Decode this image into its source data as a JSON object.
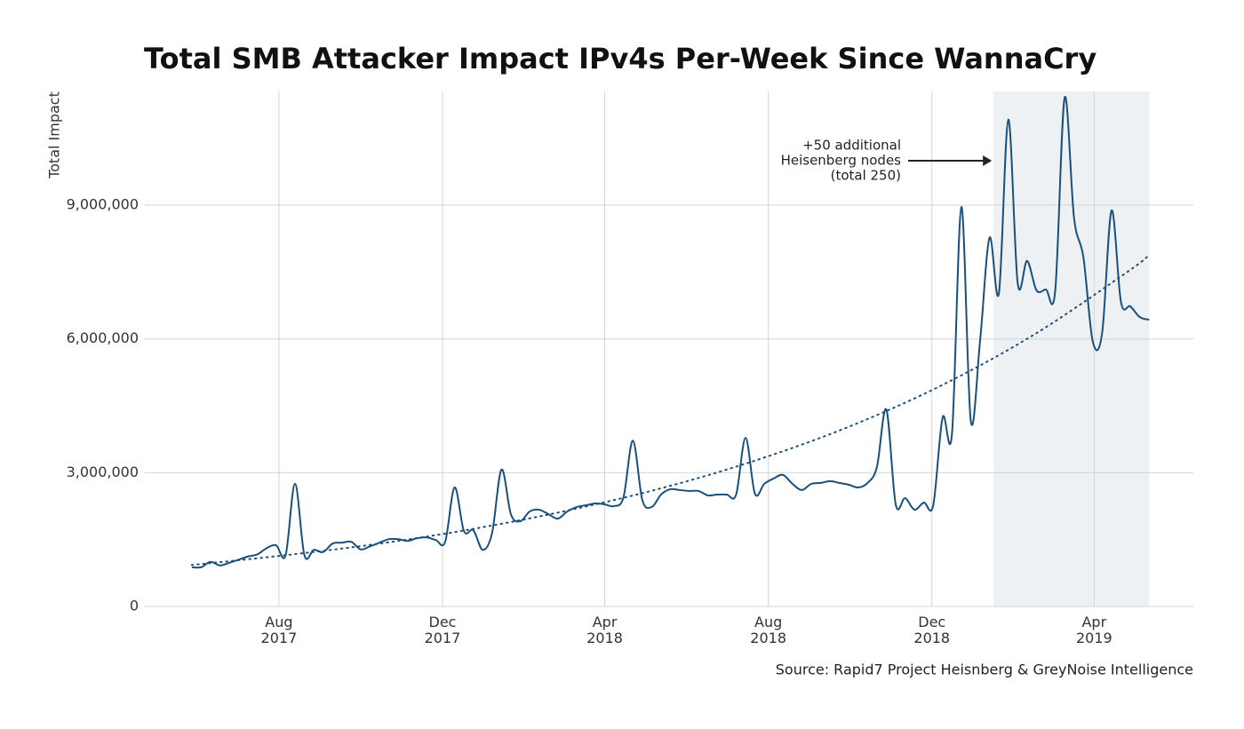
{
  "chart_data": {
    "type": "line",
    "title": "Total SMB Attacker Impact IPv4s Per-Week Since WannaCry",
    "y_label": "Total Impact",
    "source": "Source: Rapid7 Project Heisnberg & GreyNoise Intelligence",
    "annotation": {
      "lines": [
        "+50 additional",
        "Heisenberg nodes",
        "(total 250)"
      ],
      "x": "2019-01-16"
    },
    "highlight": [
      "2019-01-16",
      "2019-05-12"
    ],
    "grid": true,
    "xlim": [
      "2017-04-23",
      "2019-06-14"
    ],
    "xticks": [
      {
        "value": "2017-08-01",
        "label": "Aug\n2017"
      },
      {
        "value": "2017-12-01",
        "label": "Dec\n2017"
      },
      {
        "value": "2018-04-01",
        "label": "Apr\n2018"
      },
      {
        "value": "2018-08-01",
        "label": "Aug\n2018"
      },
      {
        "value": "2018-12-01",
        "label": "Dec\n2018"
      },
      {
        "value": "2019-04-01",
        "label": "Apr\n2019"
      }
    ],
    "ylim": [
      0,
      11550000
    ],
    "yticks": [
      0,
      {
        "value": 3000000,
        "label": "3,000,000"
      },
      {
        "value": 6000000,
        "label": "6,000,000"
      },
      {
        "value": 9000000,
        "label": "9,000,000"
      }
    ],
    "x": [
      "2017-05-28",
      "2017-06-04",
      "2017-06-11",
      "2017-06-18",
      "2017-06-25",
      "2017-07-02",
      "2017-07-09",
      "2017-07-16",
      "2017-07-23",
      "2017-07-30",
      "2017-08-06",
      "2017-08-13",
      "2017-08-20",
      "2017-08-27",
      "2017-09-03",
      "2017-09-10",
      "2017-09-17",
      "2017-09-24",
      "2017-10-01",
      "2017-10-08",
      "2017-10-15",
      "2017-10-22",
      "2017-10-29",
      "2017-11-05",
      "2017-11-12",
      "2017-11-19",
      "2017-11-26",
      "2017-12-03",
      "2017-12-10",
      "2017-12-17",
      "2017-12-24",
      "2017-12-31",
      "2018-01-07",
      "2018-01-14",
      "2018-01-21",
      "2018-01-28",
      "2018-02-04",
      "2018-02-11",
      "2018-02-18",
      "2018-02-25",
      "2018-03-04",
      "2018-03-11",
      "2018-03-18",
      "2018-03-25",
      "2018-04-01",
      "2018-04-08",
      "2018-04-15",
      "2018-04-22",
      "2018-04-29",
      "2018-05-06",
      "2018-05-13",
      "2018-05-20",
      "2018-05-27",
      "2018-06-03",
      "2018-06-10",
      "2018-06-17",
      "2018-06-24",
      "2018-07-01",
      "2018-07-08",
      "2018-07-15",
      "2018-07-22",
      "2018-07-29",
      "2018-08-05",
      "2018-08-12",
      "2018-08-19",
      "2018-08-26",
      "2018-09-02",
      "2018-09-09",
      "2018-09-16",
      "2018-09-23",
      "2018-09-30",
      "2018-10-07",
      "2018-10-14",
      "2018-10-21",
      "2018-10-28",
      "2018-11-04",
      "2018-11-11",
      "2018-11-18",
      "2018-11-25",
      "2018-12-02",
      "2018-12-09",
      "2018-12-16",
      "2018-12-23",
      "2018-12-30",
      "2019-01-06",
      "2019-01-13",
      "2019-01-20",
      "2019-01-27",
      "2019-02-03",
      "2019-02-10",
      "2019-02-17",
      "2019-02-24",
      "2019-03-03",
      "2019-03-10",
      "2019-03-17",
      "2019-03-24",
      "2019-03-31",
      "2019-04-07",
      "2019-04-14",
      "2019-04-21",
      "2019-04-28",
      "2019-05-05",
      "2019-05-12"
    ],
    "series": [
      {
        "color": "#1b4f7c",
        "values": [
          880000,
          880000,
          1000000,
          920000,
          980000,
          1050000,
          1120000,
          1170000,
          1310000,
          1370000,
          1150000,
          2750000,
          1150000,
          1270000,
          1220000,
          1410000,
          1430000,
          1450000,
          1280000,
          1350000,
          1430000,
          1510000,
          1510000,
          1470000,
          1530000,
          1550000,
          1490000,
          1450000,
          2670000,
          1690000,
          1710000,
          1270000,
          1650000,
          3070000,
          2070000,
          1910000,
          2130000,
          2170000,
          2070000,
          1970000,
          2130000,
          2230000,
          2270000,
          2310000,
          2290000,
          2250000,
          2450000,
          3720000,
          2390000,
          2230000,
          2510000,
          2630000,
          2610000,
          2590000,
          2590000,
          2490000,
          2510000,
          2510000,
          2510000,
          3780000,
          2530000,
          2750000,
          2870000,
          2950000,
          2750000,
          2610000,
          2750000,
          2770000,
          2810000,
          2770000,
          2730000,
          2670000,
          2770000,
          3130000,
          4420000,
          2290000,
          2430000,
          2170000,
          2330000,
          2270000,
          4240000,
          3880000,
          8960000,
          4160000,
          5980000,
          8270000,
          7030000,
          10920000,
          7250000,
          7750000,
          7090000,
          7110000,
          7090000,
          11410000,
          8720000,
          7830000,
          5940000,
          6140000,
          8880000,
          6830000,
          6730000,
          6490000,
          6430000
        ]
      }
    ],
    "trend": {
      "color": "#1b4f7c",
      "x": [
        "2017-05-28",
        "2017-08-06",
        "2017-10-15",
        "2017-12-24",
        "2018-03-04",
        "2018-05-13",
        "2018-07-22",
        "2018-09-30",
        "2018-12-09",
        "2019-02-17",
        "2019-04-28",
        "2019-05-12"
      ],
      "values": [
        930000,
        1150000,
        1410000,
        1740000,
        2150000,
        2650000,
        3270000,
        4030000,
        4970000,
        6130000,
        7550000,
        7890000
      ]
    }
  }
}
